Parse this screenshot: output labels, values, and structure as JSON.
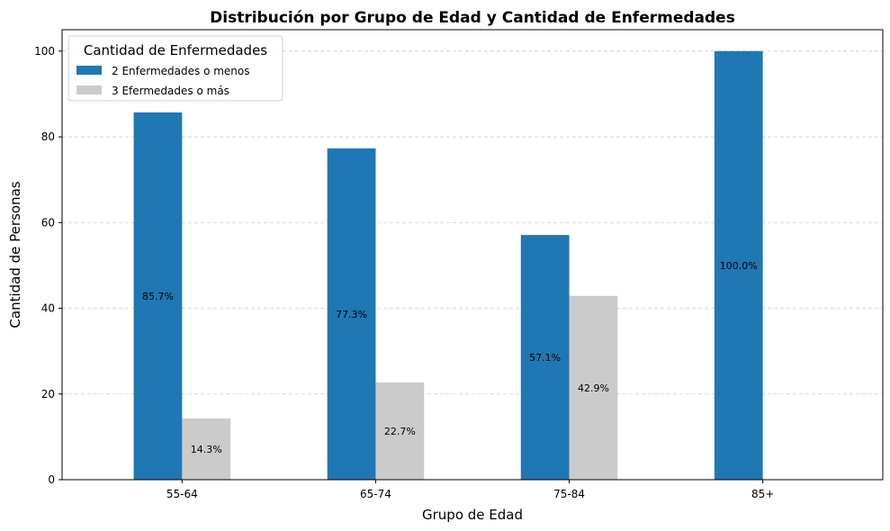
{
  "chart_data": {
    "type": "bar",
    "title": "Distribución por Grupo de Edad y Cantidad de Enfermedades",
    "xlabel": "Grupo de Edad",
    "ylabel": "Cantidad de Personas",
    "categories": [
      "55-64",
      "65-74",
      "75-84",
      "85+"
    ],
    "ylim": [
      0,
      105
    ],
    "yticks": [
      0,
      20,
      40,
      60,
      80,
      100
    ],
    "grid": "y-dashed",
    "legend": {
      "title": "Cantidad de Enfermedades",
      "placement": "top-left"
    },
    "series": [
      {
        "name": "2 Enfermedades o menos",
        "color": "#1f77b4",
        "values": [
          85.7,
          77.3,
          57.1,
          100.0
        ],
        "labels": [
          "85.7%",
          "77.3%",
          "57.1%",
          "100.0%"
        ]
      },
      {
        "name": "3 Efermedades o más",
        "color": "#cbcbcb",
        "values": [
          14.3,
          22.7,
          42.9,
          0
        ],
        "labels": [
          "14.3%",
          "22.7%",
          "42.9%",
          ""
        ]
      }
    ]
  }
}
